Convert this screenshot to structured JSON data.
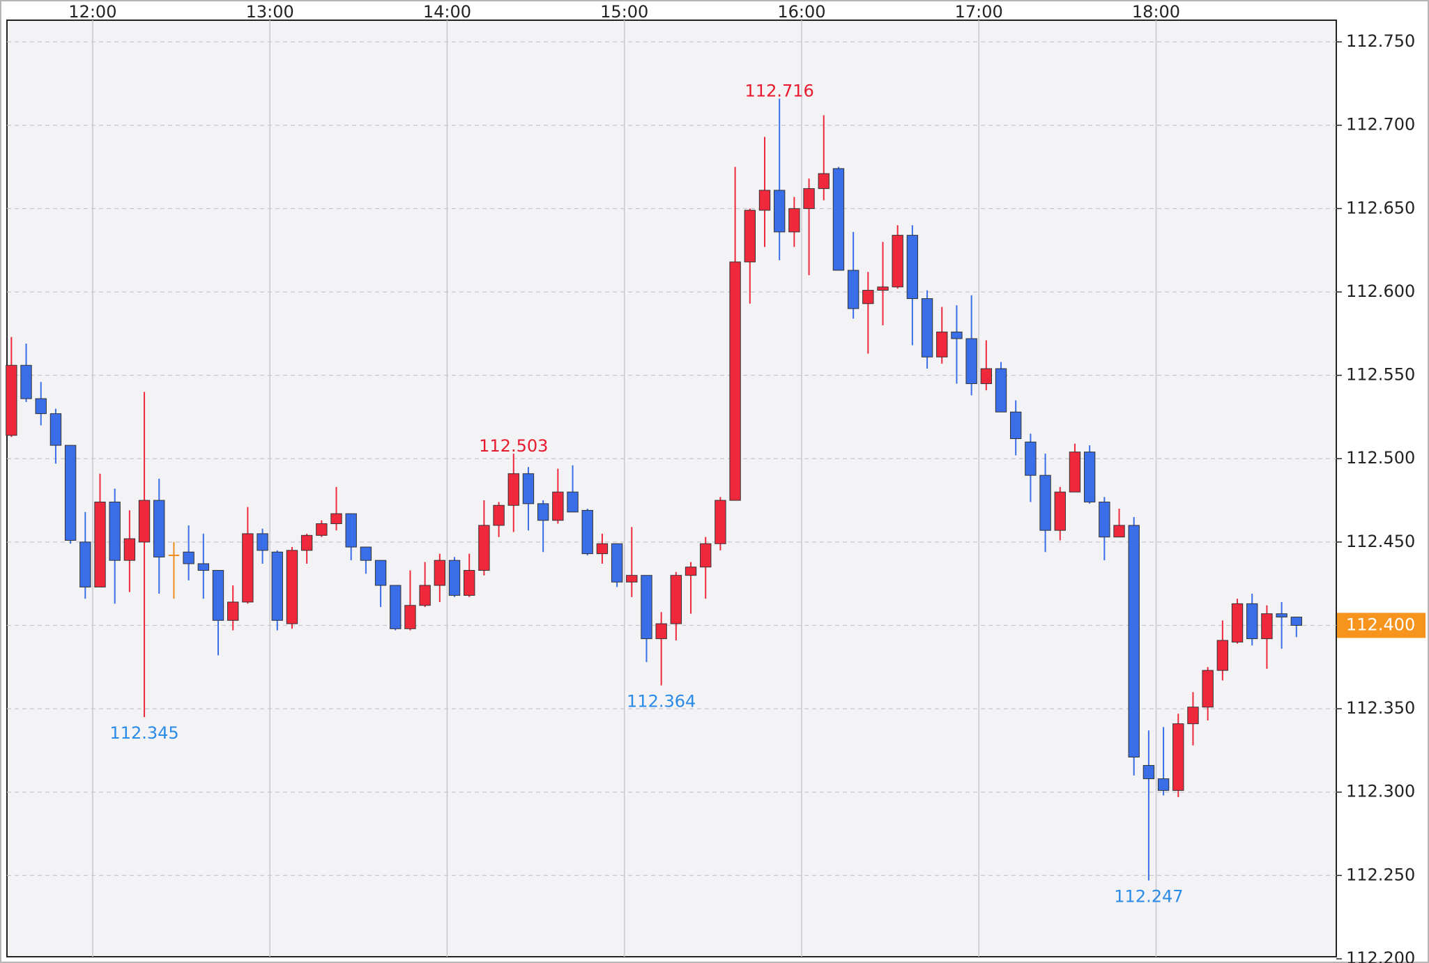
{
  "chart_data": {
    "type": "candlestick",
    "x": [
      690,
      695,
      700,
      705,
      710,
      715,
      720,
      725,
      730,
      735,
      740,
      745,
      750,
      755,
      760,
      765,
      770,
      775,
      780,
      785,
      790,
      795,
      800,
      805,
      810,
      815,
      820,
      825,
      830,
      835,
      840,
      845,
      850,
      855,
      860,
      865,
      870,
      875,
      880,
      885,
      890,
      895,
      900,
      905,
      910,
      915,
      920,
      925,
      930,
      935,
      940,
      945,
      950,
      955,
      960,
      965,
      970,
      975,
      980,
      985,
      990,
      995,
      1000,
      1005,
      1010,
      1015,
      1020,
      1025,
      1030,
      1035,
      1040,
      1045,
      1050,
      1055,
      1060,
      1065,
      1070,
      1075,
      1080,
      1085,
      1090,
      1095,
      1100,
      1105,
      1110,
      1115,
      1120,
      1125
    ],
    "open": [
      112.514,
      112.556,
      112.536,
      112.527,
      112.508,
      112.45,
      112.423,
      112.474,
      112.439,
      112.45,
      112.475,
      112.442,
      112.444,
      112.437,
      112.433,
      112.403,
      112.414,
      112.455,
      112.444,
      112.401,
      112.445,
      112.454,
      112.461,
      112.467,
      112.447,
      112.439,
      112.424,
      112.398,
      112.412,
      112.424,
      112.439,
      112.418,
      112.433,
      112.46,
      112.472,
      112.491,
      112.473,
      112.463,
      112.48,
      112.469,
      112.443,
      112.449,
      112.426,
      112.43,
      112.392,
      112.401,
      112.43,
      112.435,
      112.449,
      112.475,
      112.618,
      112.649,
      112.661,
      112.636,
      112.65,
      112.662,
      112.674,
      112.613,
      112.593,
      112.601,
      112.603,
      112.634,
      112.596,
      112.561,
      112.576,
      112.572,
      112.545,
      112.554,
      112.528,
      112.51,
      112.49,
      112.457,
      112.48,
      112.504,
      112.474,
      112.453,
      112.46,
      112.316,
      112.308,
      112.301,
      112.341,
      112.351,
      112.373,
      112.39,
      112.413,
      112.392,
      112.407,
      112.405
    ],
    "high": [
      112.573,
      112.569,
      112.546,
      112.53,
      112.508,
      112.468,
      112.491,
      112.482,
      112.469,
      112.54,
      112.488,
      112.45,
      112.46,
      112.455,
      112.433,
      112.424,
      112.471,
      112.458,
      112.445,
      112.447,
      112.455,
      112.463,
      112.483,
      112.467,
      112.447,
      112.439,
      112.424,
      112.433,
      112.438,
      112.443,
      112.441,
      112.443,
      112.475,
      112.474,
      112.503,
      112.495,
      112.475,
      112.494,
      112.496,
      112.47,
      112.455,
      112.449,
      112.459,
      112.43,
      112.408,
      112.432,
      112.438,
      112.453,
      112.477,
      112.675,
      112.65,
      112.693,
      112.716,
      112.657,
      112.668,
      112.706,
      112.675,
      112.636,
      112.612,
      112.63,
      112.64,
      112.64,
      112.601,
      112.591,
      112.592,
      112.598,
      112.571,
      112.558,
      112.535,
      112.515,
      112.503,
      112.483,
      112.509,
      112.508,
      112.477,
      112.47,
      112.465,
      112.337,
      112.339,
      112.347,
      112.36,
      112.375,
      112.403,
      112.416,
      112.419,
      112.412,
      112.414,
      112.405
    ],
    "low": [
      112.513,
      112.534,
      112.52,
      112.497,
      112.449,
      112.416,
      112.423,
      112.413,
      112.42,
      112.345,
      112.419,
      112.416,
      112.427,
      112.416,
      112.382,
      112.397,
      112.413,
      112.437,
      112.397,
      112.398,
      112.437,
      112.453,
      112.457,
      112.439,
      112.431,
      112.411,
      112.397,
      112.397,
      112.411,
      112.414,
      112.417,
      112.417,
      112.43,
      112.453,
      112.456,
      112.457,
      112.444,
      112.461,
      112.468,
      112.442,
      112.437,
      112.423,
      112.417,
      112.378,
      112.364,
      112.391,
      112.407,
      112.416,
      112.445,
      112.475,
      112.593,
      112.627,
      112.619,
      112.627,
      112.61,
      112.655,
      112.613,
      112.584,
      112.563,
      112.58,
      112.602,
      112.568,
      112.554,
      112.557,
      112.545,
      112.538,
      112.541,
      112.528,
      112.502,
      112.474,
      112.444,
      112.451,
      112.48,
      112.473,
      112.439,
      112.453,
      112.31,
      112.247,
      112.298,
      112.297,
      112.328,
      112.343,
      112.367,
      112.389,
      112.388,
      112.374,
      112.386,
      112.393
    ],
    "close": [
      112.556,
      112.536,
      112.527,
      112.508,
      112.451,
      112.423,
      112.474,
      112.439,
      112.452,
      112.475,
      112.441,
      112.442,
      112.437,
      112.433,
      112.403,
      112.414,
      112.455,
      112.445,
      112.403,
      112.445,
      112.454,
      112.461,
      112.467,
      112.447,
      112.439,
      112.424,
      112.398,
      112.412,
      112.424,
      112.439,
      112.418,
      112.433,
      112.46,
      112.472,
      112.491,
      112.473,
      112.463,
      112.48,
      112.468,
      112.443,
      112.449,
      112.426,
      112.43,
      112.392,
      112.401,
      112.43,
      112.435,
      112.449,
      112.475,
      112.618,
      112.649,
      112.661,
      112.636,
      112.65,
      112.662,
      112.671,
      112.613,
      112.59,
      112.601,
      112.603,
      112.634,
      112.596,
      112.561,
      112.576,
      112.572,
      112.545,
      112.554,
      112.528,
      112.512,
      112.49,
      112.457,
      112.48,
      112.504,
      112.474,
      112.453,
      112.46,
      112.321,
      112.308,
      112.301,
      112.341,
      112.351,
      112.373,
      112.391,
      112.413,
      112.392,
      112.407,
      112.405,
      112.4
    ],
    "colors": {
      "up": "#f0283c",
      "down": "#3a6ee8",
      "flat": "#f08c1e"
    },
    "xlim": [
      691,
      1141
    ],
    "xticks": [
      {
        "value": 720,
        "label": "12:00"
      },
      {
        "value": 780,
        "label": "13:00"
      },
      {
        "value": 840,
        "label": "14:00"
      },
      {
        "value": 900,
        "label": "15:00"
      },
      {
        "value": 960,
        "label": "16:00"
      },
      {
        "value": 1020,
        "label": "17:00"
      },
      {
        "value": 1080,
        "label": "18:00"
      }
    ],
    "ylim": [
      112.2,
      112.763
    ],
    "yticks": [
      {
        "value": 112.2,
        "label": "112.200"
      },
      {
        "value": 112.25,
        "label": "112.250"
      },
      {
        "value": 112.3,
        "label": "112.300"
      },
      {
        "value": 112.35,
        "label": "112.350"
      },
      {
        "value": 112.4,
        "label": "112.400"
      },
      {
        "value": 112.45,
        "label": "112.450"
      },
      {
        "value": 112.5,
        "label": "112.500"
      },
      {
        "value": 112.55,
        "label": "112.550"
      },
      {
        "value": 112.6,
        "label": "112.600"
      },
      {
        "value": 112.65,
        "label": "112.650"
      },
      {
        "value": 112.7,
        "label": "112.700"
      },
      {
        "value": 112.75,
        "label": "112.750"
      }
    ],
    "grid": true,
    "annotations": [
      {
        "x": 735,
        "y": 112.345,
        "position": "below",
        "color": "#2a8ae8"
      },
      {
        "x": 860,
        "y": 112.503,
        "position": "above",
        "color": "#e8192c"
      },
      {
        "x": 910,
        "y": 112.364,
        "position": "below",
        "color": "#2a8ae8"
      },
      {
        "x": 950,
        "y": 112.716,
        "position": "above",
        "color": "#e8192c"
      },
      {
        "x": 1075,
        "y": 112.247,
        "position": "below",
        "color": "#2a8ae8"
      }
    ],
    "current_price": {
      "value": 112.4,
      "label": "112.400",
      "color": "#f7941d"
    }
  }
}
